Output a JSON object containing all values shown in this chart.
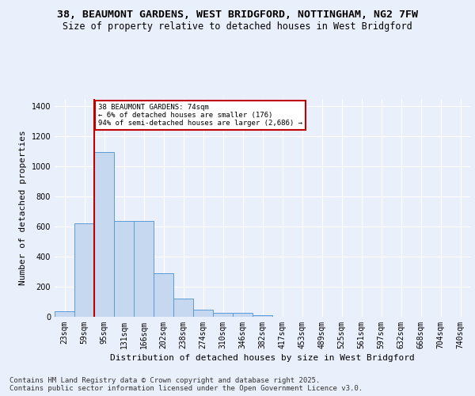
{
  "title_line1": "38, BEAUMONT GARDENS, WEST BRIDGFORD, NOTTINGHAM, NG2 7FW",
  "title_line2": "Size of property relative to detached houses in West Bridgford",
  "xlabel": "Distribution of detached houses by size in West Bridgford",
  "ylabel": "Number of detached properties",
  "categories": [
    "23sqm",
    "59sqm",
    "95sqm",
    "131sqm",
    "166sqm",
    "202sqm",
    "238sqm",
    "274sqm",
    "310sqm",
    "346sqm",
    "382sqm",
    "417sqm",
    "453sqm",
    "489sqm",
    "525sqm",
    "561sqm",
    "597sqm",
    "632sqm",
    "668sqm",
    "704sqm",
    "740sqm"
  ],
  "values": [
    35,
    620,
    1095,
    640,
    640,
    290,
    120,
    50,
    25,
    25,
    12,
    0,
    0,
    0,
    0,
    0,
    0,
    0,
    0,
    0,
    0
  ],
  "bar_color": "#c5d8f0",
  "bar_edge_color": "#5b9bd5",
  "vline_color": "#c00000",
  "annotation_text": "38 BEAUMONT GARDENS: 74sqm\n← 6% of detached houses are smaller (176)\n94% of semi-detached houses are larger (2,686) →",
  "annotation_box_color": "#ffffff",
  "annotation_box_edge_color": "#c00000",
  "ylim": [
    0,
    1450
  ],
  "yticks": [
    0,
    200,
    400,
    600,
    800,
    1000,
    1200,
    1400
  ],
  "footnote": "Contains HM Land Registry data © Crown copyright and database right 2025.\nContains public sector information licensed under the Open Government Licence v3.0.",
  "bg_color": "#eaf0fb",
  "plot_bg_color": "#eaf0fb",
  "grid_color": "#ffffff",
  "title_fontsize": 9.5,
  "subtitle_fontsize": 8.5,
  "axis_label_fontsize": 8,
  "tick_fontsize": 7,
  "footnote_fontsize": 6.5
}
